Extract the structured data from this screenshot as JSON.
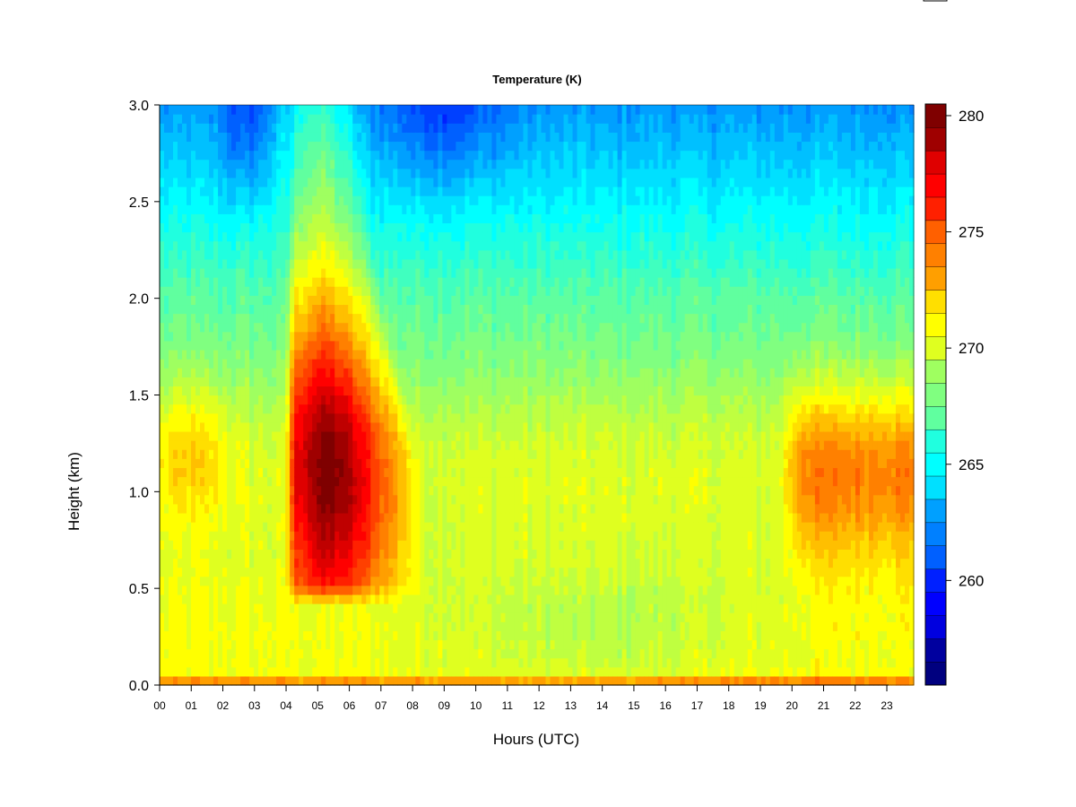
{
  "chart_data": {
    "type": "heatmap",
    "title": "Temperature (K)",
    "xlabel": "Hours (UTC)",
    "ylabel": "Height (km)",
    "x_tick_labels": [
      "00",
      "01",
      "02",
      "03",
      "04",
      "05",
      "06",
      "07",
      "08",
      "09",
      "10",
      "11",
      "12",
      "13",
      "14",
      "15",
      "16",
      "17",
      "18",
      "19",
      "20",
      "21",
      "22",
      "23"
    ],
    "x_range_hours": [
      0,
      23.85
    ],
    "y_tick_labels": [
      "0.0",
      "0.5",
      "1.0",
      "1.5",
      "2.0",
      "2.5",
      "3.0"
    ],
    "y_ticks": [
      0,
      0.5,
      1.0,
      1.5,
      2.0,
      2.5,
      3.0
    ],
    "ylim": [
      0,
      3.0
    ],
    "colorbar": {
      "tick_labels": [
        "260",
        "265",
        "270",
        "275",
        "280"
      ],
      "ticks": [
        260,
        265,
        270,
        275,
        280
      ],
      "range": [
        256,
        281
      ],
      "level_step": 1,
      "colors": [
        "#00007f",
        "#00009f",
        "#0000bf",
        "#0000df",
        "#0000ff",
        "#0020ff",
        "#0040ff",
        "#0060ff",
        "#0080ff",
        "#00a0ff",
        "#00c0ff",
        "#00e0ff",
        "#00ffff",
        "#20ffdf",
        "#40ffbf",
        "#60ff9f",
        "#80ff80",
        "#9fff60",
        "#bfff40",
        "#dfff20",
        "#ffff00",
        "#ffdf00",
        "#ffbf00",
        "#ff9f00",
        "#ff8000",
        "#ff6000",
        "#ff4000",
        "#ff2000",
        "#ff0000",
        "#df0000",
        "#bf0000",
        "#9f0000",
        "#7f0000"
      ]
    },
    "grid": false,
    "features": [
      {
        "description_hours": [
          4.0,
          8.2
        ],
        "height_km": [
          0.4,
          3.0
        ],
        "peak_K": 280
      },
      {
        "description_hours": [
          19.8,
          23.85
        ],
        "height_km": [
          0.7,
          1.6
        ],
        "peak_K": 274
      },
      {
        "description_hours": [
          0.2,
          2.4
        ],
        "height_km": [
          0.9,
          1.6
        ],
        "peak_K": 273
      }
    ]
  }
}
